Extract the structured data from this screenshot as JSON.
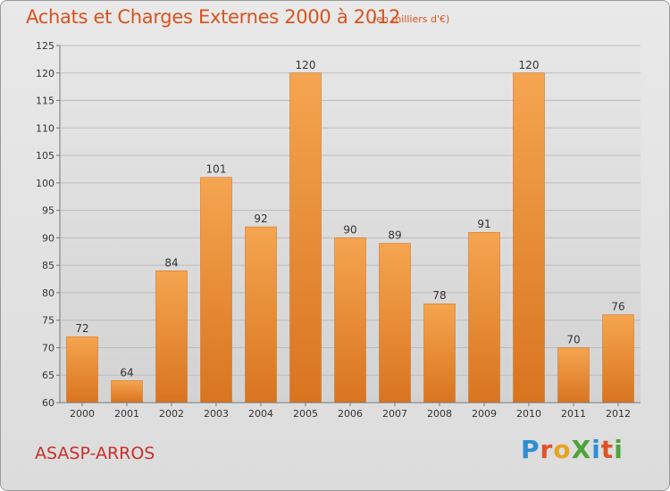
{
  "chart_data": {
    "type": "bar",
    "title": "Achats et Charges Externes 2000 à 2012",
    "subtitle": "(en milliers d'€)",
    "categories": [
      "2000",
      "2001",
      "2002",
      "2003",
      "2004",
      "2005",
      "2006",
      "2007",
      "2008",
      "2009",
      "2010",
      "2011",
      "2012"
    ],
    "values": [
      72,
      64,
      84,
      101,
      92,
      120,
      90,
      89,
      78,
      91,
      120,
      70,
      76
    ],
    "ylim": [
      60,
      125
    ],
    "yticks": [
      60,
      65,
      70,
      75,
      80,
      85,
      90,
      95,
      100,
      105,
      110,
      115,
      120,
      125
    ],
    "grid": true,
    "bar_color_top": "#f5a550",
    "bar_color_bottom": "#d9741f"
  },
  "footer": {
    "location": "ASASP-ARROS",
    "logo": "ProXiti"
  },
  "colors": {
    "title": "#d9531e",
    "location": "#c9302c",
    "logo_letters": [
      "#2a8fd6",
      "#e0532a",
      "#e8a41c",
      "#4da33a",
      "#2a8fd6",
      "#e0532a",
      "#4da33a"
    ]
  }
}
